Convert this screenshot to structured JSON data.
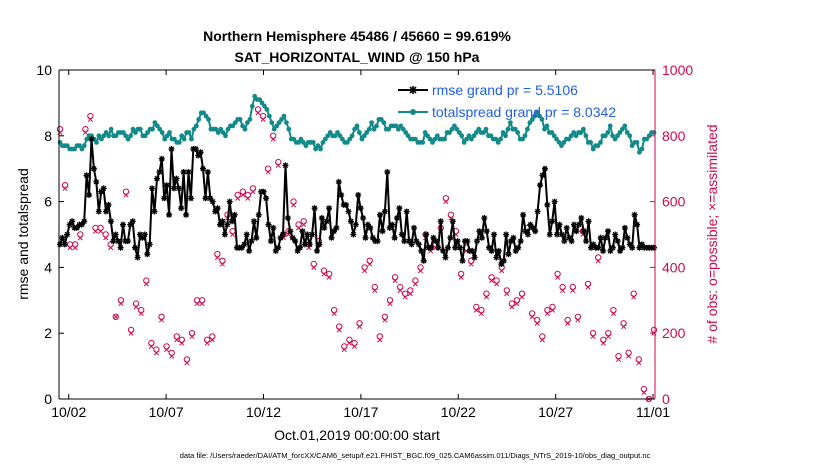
{
  "colors": {
    "rmse": "#000000",
    "spread": "#138a8a",
    "obs": "#cc0a52",
    "legend_text": "#1f5fe0",
    "axis": "#000000"
  },
  "chart_data": {
    "type": "line",
    "title": "Northern Hemisphere 45486 / 45660 = 99.619%",
    "subtitle": "SAT_HORIZONTAL_WIND @ 150 hPa",
    "xlabel": "Oct.01,2019 00:00:00 start",
    "ylabel": "rmse and totalspread",
    "y2label": "# of obs: o=possible; ×=assimilated",
    "xlim": [
      0.5,
      31.1
    ],
    "ylim": [
      0,
      10
    ],
    "y2lim": [
      0,
      1000
    ],
    "xtick_values": [
      1,
      6,
      11,
      16,
      21,
      26,
      31
    ],
    "xtick_labels": [
      "10/02",
      "10/07",
      "10/12",
      "10/17",
      "10/22",
      "10/27",
      "11/01"
    ],
    "ytick_values": [
      0,
      2,
      4,
      6,
      8,
      10
    ],
    "ytick_labels": [
      "0",
      "2",
      "4",
      "6",
      "8",
      "10"
    ],
    "y2tick_values": [
      0,
      200,
      400,
      600,
      800,
      1000
    ],
    "y2tick_labels": [
      "0",
      "200",
      "400",
      "600",
      "800",
      "1000"
    ],
    "legend_placement": "top-right",
    "footnote": "data file: /Users/raeder/DAI/ATM_forcXX/CAM6_setup/f.e21.FHIST_BGC.f09_025.CAM6assim.011/Diags_NTrS_2019-10/obs_diag_output.nc",
    "series": [
      {
        "name": "rmse grand pr = 5.5106",
        "axis": "left",
        "marker": "asterisk",
        "values": [
          4.7,
          4.9,
          4.7,
          5.0,
          5.3,
          5.4,
          5.2,
          5.2,
          5.3,
          5.3,
          5.4,
          6.8,
          6.2,
          7.9,
          7.0,
          6.6,
          5.7,
          6.3,
          6.4,
          5.7,
          5.9,
          5.4,
          4.8,
          5.0,
          4.8,
          4.6,
          5.3,
          4.8,
          4.8,
          5.3,
          5.4,
          4.6,
          4.3,
          5.0,
          4.9,
          5.0,
          4.4,
          4.7,
          6.4,
          5.7,
          6.7,
          6.9,
          7.3,
          6.1,
          6.5,
          5.6,
          7.6,
          6.4,
          6.7,
          6.4,
          5.8,
          6.9,
          5.6,
          6.9,
          6.1,
          7.6,
          7.6,
          7.4,
          7.5,
          7.0,
          6.1,
          6.9,
          6.1,
          6.0,
          5.7,
          5.8,
          5.3,
          5.4,
          5.0,
          5.3,
          6.0,
          5.4,
          5.6,
          4.6,
          4.6,
          4.6,
          4.7,
          5.0,
          4.5,
          4.8,
          5.4,
          4.9,
          5.6,
          6.3,
          6.3,
          6.1,
          5.3,
          4.8,
          5.2,
          4.5,
          4.6,
          4.9,
          5.0,
          7.1,
          5.5,
          5.1,
          4.9,
          4.8,
          4.5,
          4.6,
          5.1,
          4.7,
          5.0,
          4.7,
          5.0,
          5.8,
          4.5,
          4.7,
          5.5,
          5.2,
          5.4,
          5.8,
          4.9,
          5.1,
          5.2,
          6.6,
          6.2,
          5.9,
          5.9,
          5.7,
          5.4,
          5.0,
          5.3,
          6.2,
          5.8,
          5.5,
          4.9,
          5.3,
          5.2,
          4.9,
          4.8,
          4.8,
          5.6,
          5.1,
          5.7,
          6.9,
          5.2,
          5.3,
          4.9,
          5.5,
          5.8,
          5.0,
          4.8,
          5.7,
          4.8,
          4.7,
          5.2,
          4.8,
          4.7,
          4.5,
          4.2,
          5.0,
          4.6,
          4.6,
          4.9,
          4.8,
          4.6,
          5.4,
          4.5,
          4.3,
          4.6,
          4.9,
          5.4,
          4.6,
          4.8,
          4.6,
          4.2,
          4.8,
          4.8,
          4.5,
          4.5,
          4.3,
          4.8,
          5.1,
          4.9,
          5.5,
          5.1,
          4.6,
          4.5,
          5.0,
          4.3,
          4.5,
          4.1,
          4.2,
          5.0,
          4.4,
          4.8,
          4.9,
          4.5,
          4.6,
          4.8,
          5.6,
          5.1,
          5.0,
          5.3,
          5.2,
          5.1,
          5.7,
          6.5,
          6.8,
          7.0,
          5.9,
          5.0,
          5.4,
          6.0,
          5.0,
          5.3,
          5.0,
          4.8,
          5.2,
          4.9,
          4.8,
          5.3,
          5.1,
          5.3,
          5.5,
          5.1,
          4.8,
          5.4,
          4.6,
          4.7,
          4.6,
          4.6,
          4.9,
          4.5,
          4.9,
          5.1,
          4.5,
          4.6,
          5.0,
          4.8,
          4.5,
          4.6,
          5.2,
          4.9,
          4.7,
          4.6,
          5.6,
          5.3,
          4.6,
          4.7,
          4.6,
          4.6,
          4.6,
          4.6,
          4.6
        ]
      },
      {
        "name": "totalspread grand pr = 8.0342",
        "axis": "left",
        "marker": "circle",
        "values": [
          7.8,
          7.7,
          7.7,
          7.7,
          7.6,
          7.6,
          7.6,
          7.7,
          7.7,
          7.6,
          7.7,
          7.9,
          8.0,
          8.0,
          7.9,
          7.8,
          8.0,
          7.9,
          8.0,
          8.1,
          8.0,
          8.2,
          8.0,
          8.0,
          8.1,
          8.1,
          8.1,
          8.0,
          7.9,
          8.0,
          8.2,
          8.1,
          8.2,
          8.2,
          8.0,
          8.0,
          8.1,
          8.2,
          8.2,
          8.4,
          8.3,
          8.2,
          8.1,
          7.9,
          8.0,
          8.1,
          7.9,
          7.9,
          7.8,
          7.8,
          8.0,
          7.9,
          8.1,
          8.1,
          7.9,
          8.2,
          8.3,
          8.5,
          8.7,
          8.7,
          8.6,
          8.5,
          8.2,
          8.2,
          8.2,
          8.1,
          8.2,
          8.1,
          8.0,
          8.2,
          8.3,
          8.3,
          8.4,
          8.5,
          8.5,
          8.3,
          8.2,
          8.4,
          8.5,
          8.9,
          9.2,
          9.1,
          9.1,
          9.0,
          8.9,
          8.8,
          8.6,
          8.4,
          8.2,
          8.3,
          8.4,
          8.5,
          8.6,
          8.4,
          8.2,
          7.9,
          7.9,
          7.8,
          7.8,
          7.9,
          7.8,
          7.7,
          7.8,
          7.8,
          7.8,
          7.6,
          7.7,
          7.6,
          7.8,
          7.9,
          8.0,
          8.1,
          8.0,
          8.0,
          8.1,
          8.0,
          7.9,
          7.8,
          7.8,
          7.9,
          8.0,
          8.2,
          8.3,
          8.1,
          7.9,
          8.0,
          8.1,
          8.2,
          8.4,
          8.2,
          8.3,
          8.5,
          8.5,
          8.4,
          8.2,
          8.2,
          8.3,
          8.3,
          8.3,
          8.2,
          8.3,
          8.2,
          8.1,
          8.0,
          7.9,
          7.9,
          7.9,
          7.8,
          7.8,
          7.8,
          8.1,
          8.0,
          7.9,
          7.8,
          7.9,
          8.0,
          7.9,
          7.9,
          7.9,
          8.1,
          8.1,
          8.2,
          8.3,
          8.2,
          8.1,
          8.0,
          7.8,
          7.9,
          8.0,
          7.9,
          8.0,
          8.1,
          8.2,
          8.1,
          8.1,
          8.2,
          8.0,
          8.0,
          7.9,
          7.9,
          7.8,
          7.9,
          8.1,
          8.0,
          8.2,
          8.4,
          8.2,
          8.2,
          8.1,
          7.9,
          7.9,
          8.0,
          8.2,
          8.4,
          8.5,
          8.6,
          8.7,
          8.6,
          8.5,
          8.2,
          8.3,
          8.1,
          8.1,
          8.0,
          7.9,
          7.8,
          7.7,
          7.8,
          7.9,
          7.9,
          8.0,
          8.1,
          8.0,
          8.1,
          8.1,
          8.2,
          8.0,
          7.8,
          7.8,
          7.6,
          7.7,
          7.7,
          7.8,
          8.0,
          8.0,
          8.1,
          8.3,
          8.0,
          7.9,
          8.0,
          8.1,
          8.2,
          8.3,
          8.1,
          8.0,
          7.7,
          7.8,
          7.8,
          7.5,
          7.6,
          7.9,
          7.9,
          8.0,
          8.1,
          8.1
        ]
      },
      {
        "name": "obs possible",
        "axis": "right",
        "marker": "open-circle",
        "values": [
          820,
          650,
          470,
          470,
          500,
          820,
          860,
          520,
          520,
          500,
          470,
          250,
          300,
          630,
          210,
          290,
          270,
          360,
          170,
          150,
          250,
          160,
          140,
          190,
          180,
          120,
          200,
          300,
          300,
          180,
          190,
          440,
          420,
          560,
          510,
          620,
          630,
          620,
          640,
          880,
          860,
          700,
          800,
          720,
          500,
          510,
          600,
          530,
          540,
          470,
          410,
          480,
          390,
          380,
          270,
          220,
          160,
          180,
          170,
          230,
          400,
          420,
          340,
          190,
          250,
          300,
          370,
          340,
          320,
          330,
          360,
          400,
          500,
          460,
          470,
          520,
          610,
          560,
          510,
          380,
          460,
          420,
          280,
          270,
          320,
          370,
          360,
          400,
          330,
          290,
          300,
          320,
          520,
          260,
          240,
          190,
          270,
          280,
          380,
          340,
          240,
          340,
          250,
          510,
          350,
          200,
          430,
          180,
          200,
          270,
          130,
          230,
          140,
          320,
          120,
          30,
          0,
          210
        ]
      },
      {
        "name": "obs assimilated",
        "axis": "right",
        "marker": "cross",
        "values": [
          810,
          640,
          460,
          460,
          490,
          810,
          850,
          510,
          510,
          490,
          460,
          250,
          290,
          620,
          200,
          280,
          260,
          350,
          160,
          140,
          240,
          150,
          130,
          180,
          170,
          110,
          190,
          290,
          290,
          170,
          180,
          430,
          410,
          550,
          500,
          610,
          620,
          610,
          630,
          870,
          850,
          690,
          790,
          710,
          490,
          500,
          590,
          520,
          530,
          460,
          400,
          470,
          380,
          370,
          260,
          210,
          150,
          170,
          160,
          220,
          390,
          410,
          330,
          180,
          240,
          290,
          360,
          330,
          310,
          320,
          350,
          390,
          490,
          450,
          460,
          510,
          600,
          550,
          500,
          370,
          450,
          410,
          270,
          260,
          310,
          360,
          350,
          390,
          320,
          280,
          290,
          310,
          510,
          250,
          230,
          180,
          260,
          270,
          370,
          330,
          230,
          330,
          240,
          500,
          340,
          190,
          420,
          170,
          190,
          260,
          120,
          220,
          130,
          310,
          110,
          20,
          0,
          200
        ]
      }
    ]
  }
}
